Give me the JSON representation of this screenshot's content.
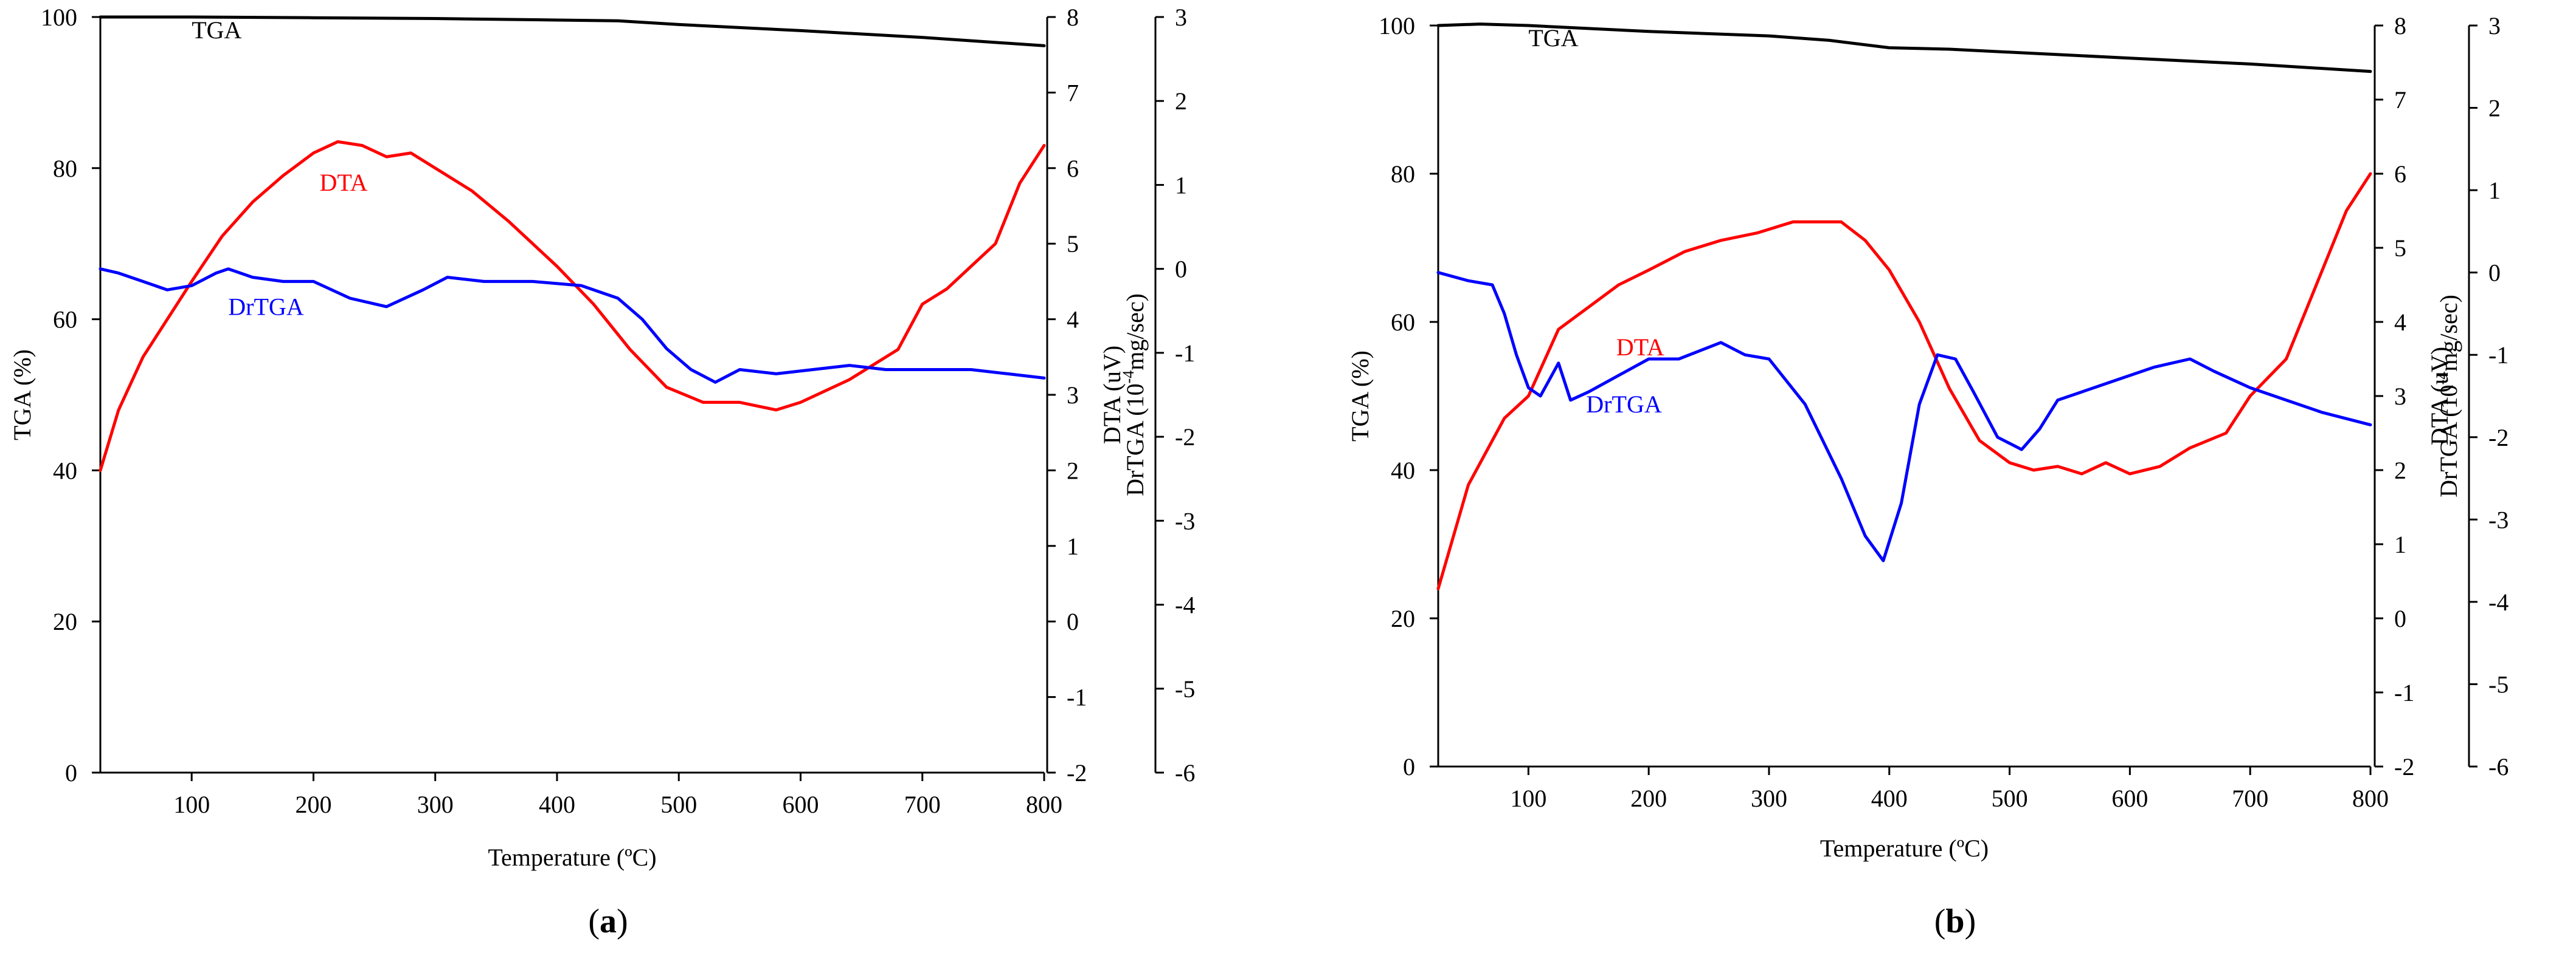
{
  "chart_data": [
    {
      "type": "line",
      "panel_label": "a",
      "xlabel": "Temperature (ºC)",
      "ylabel_left": "TGA (%)",
      "ylabel_right1": "DTA (uV)",
      "ylabel_right2_prefix": "DrTGA (10",
      "ylabel_right2_sup": "-4",
      "ylabel_right2_suffix": "mg/sec)",
      "xlim": [
        25,
        800
      ],
      "ylim_tga": [
        0,
        100
      ],
      "ylim_dta": [
        -2,
        8
      ],
      "ylim_drtga": [
        -6,
        3
      ],
      "xticks": [
        100,
        200,
        300,
        400,
        500,
        600,
        700,
        800
      ],
      "yticks_tga": [
        0,
        20,
        40,
        60,
        80,
        100
      ],
      "yticks_dta": [
        -2,
        -1,
        0,
        1,
        2,
        3,
        4,
        5,
        6,
        7,
        8
      ],
      "yticks_drtga": [
        -6,
        -5,
        -4,
        -3,
        -2,
        -1,
        0,
        1,
        2,
        3
      ],
      "series": [
        {
          "name": "TGA",
          "axis": "tga",
          "color": "#000000",
          "label_pos": {
            "x": 100,
            "y": 97.2
          },
          "x": [
            25,
            100,
            200,
            300,
            400,
            450,
            500,
            600,
            700,
            800
          ],
          "y": [
            100,
            100,
            99.9,
            99.8,
            99.6,
            99.5,
            99.0,
            98.2,
            97.3,
            96.2
          ]
        },
        {
          "name": "DTA",
          "axis": "dta",
          "color": "#ff0000",
          "label_pos": {
            "x": 205,
            "y": 5.7
          },
          "x": [
            25,
            40,
            60,
            80,
            100,
            125,
            150,
            175,
            200,
            220,
            240,
            260,
            280,
            300,
            330,
            360,
            400,
            430,
            460,
            490,
            520,
            550,
            580,
            600,
            640,
            680,
            700,
            720,
            740,
            760,
            780,
            800
          ],
          "y": [
            2.0,
            2.8,
            3.5,
            4.0,
            4.5,
            5.1,
            5.55,
            5.9,
            6.2,
            6.35,
            6.3,
            6.15,
            6.2,
            6.0,
            5.7,
            5.3,
            4.7,
            4.2,
            3.6,
            3.1,
            2.9,
            2.9,
            2.8,
            2.9,
            3.2,
            3.6,
            4.2,
            4.4,
            4.7,
            5.0,
            5.8,
            6.3
          ]
        },
        {
          "name": "DrTGA",
          "axis": "drtga",
          "color": "#0000ff",
          "label_pos": {
            "x": 130,
            "y": -0.55
          },
          "x": [
            25,
            40,
            60,
            80,
            100,
            120,
            130,
            150,
            175,
            200,
            230,
            260,
            290,
            310,
            340,
            380,
            420,
            450,
            470,
            490,
            510,
            530,
            550,
            580,
            610,
            640,
            670,
            700,
            740,
            770,
            800
          ],
          "y": [
            0.0,
            -0.05,
            -0.15,
            -0.25,
            -0.2,
            -0.05,
            0.0,
            -0.1,
            -0.15,
            -0.15,
            -0.35,
            -0.45,
            -0.25,
            -0.1,
            -0.15,
            -0.15,
            -0.2,
            -0.35,
            -0.6,
            -0.95,
            -1.2,
            -1.35,
            -1.2,
            -1.25,
            -1.2,
            -1.15,
            -1.2,
            -1.2,
            -1.2,
            -1.25,
            -1.3
          ]
        }
      ]
    },
    {
      "type": "line",
      "panel_label": "b",
      "xlabel": "Temperature (ºC)",
      "ylabel_left": "TGA (%)",
      "ylabel_right1": "DTA (uV)",
      "ylabel_right2_prefix": "DrTGA (10",
      "ylabel_right2_sup": "-4",
      "ylabel_right2_suffix": "mg/sec)",
      "xlim": [
        25,
        800
      ],
      "ylim_tga": [
        0,
        100
      ],
      "ylim_dta": [
        -2,
        8
      ],
      "ylim_drtga": [
        -6,
        3
      ],
      "xticks": [
        100,
        200,
        300,
        400,
        500,
        600,
        700,
        800
      ],
      "yticks_tga": [
        0,
        20,
        40,
        60,
        80,
        100
      ],
      "yticks_dta": [
        -2,
        -1,
        0,
        1,
        2,
        3,
        4,
        5,
        6,
        7,
        8
      ],
      "yticks_drtga": [
        -6,
        -5,
        -4,
        -3,
        -2,
        -1,
        0,
        1,
        2,
        3
      ],
      "series": [
        {
          "name": "TGA",
          "axis": "tga",
          "color": "#000000",
          "label_pos": {
            "x": 100,
            "y": 97.2
          },
          "x": [
            25,
            60,
            100,
            200,
            300,
            350,
            400,
            450,
            500,
            600,
            700,
            800
          ],
          "y": [
            100,
            100.2,
            100,
            99.2,
            98.6,
            98.0,
            97.0,
            96.8,
            96.4,
            95.6,
            94.8,
            93.8
          ]
        },
        {
          "name": "DTA",
          "axis": "dta",
          "color": "#ff0000",
          "label_pos": {
            "x": 173,
            "y": 3.55
          },
          "x": [
            25,
            50,
            80,
            100,
            125,
            150,
            175,
            200,
            230,
            260,
            290,
            320,
            340,
            360,
            380,
            400,
            425,
            450,
            475,
            500,
            520,
            540,
            560,
            580,
            600,
            625,
            650,
            680,
            700,
            730,
            760,
            780,
            800
          ],
          "y": [
            0.4,
            1.8,
            2.7,
            3.0,
            3.9,
            4.2,
            4.5,
            4.7,
            4.95,
            5.1,
            5.2,
            5.35,
            5.35,
            5.35,
            5.1,
            4.7,
            4.0,
            3.1,
            2.4,
            2.1,
            2.0,
            2.05,
            1.95,
            2.1,
            1.95,
            2.05,
            2.3,
            2.5,
            3.0,
            3.5,
            4.7,
            5.5,
            6.0
          ]
        },
        {
          "name": "DrTGA",
          "axis": "drtga",
          "color": "#0000ff",
          "label_pos": {
            "x": 148,
            "y": -1.7
          },
          "x": [
            25,
            50,
            70,
            80,
            90,
            100,
            110,
            125,
            135,
            150,
            175,
            200,
            225,
            260,
            280,
            300,
            330,
            360,
            380,
            395,
            410,
            425,
            440,
            455,
            470,
            490,
            510,
            525,
            540,
            560,
            590,
            620,
            650,
            670,
            700,
            730,
            760,
            800
          ],
          "y": [
            0.0,
            -0.1,
            -0.15,
            -0.5,
            -1.0,
            -1.4,
            -1.5,
            -1.1,
            -1.55,
            -1.45,
            -1.25,
            -1.05,
            -1.05,
            -0.85,
            -1.0,
            -1.05,
            -1.6,
            -2.5,
            -3.2,
            -3.5,
            -2.8,
            -1.6,
            -1.0,
            -1.05,
            -1.45,
            -2.0,
            -2.15,
            -1.9,
            -1.55,
            -1.45,
            -1.3,
            -1.15,
            -1.05,
            -1.2,
            -1.4,
            -1.55,
            -1.7,
            -1.85
          ]
        }
      ]
    }
  ]
}
